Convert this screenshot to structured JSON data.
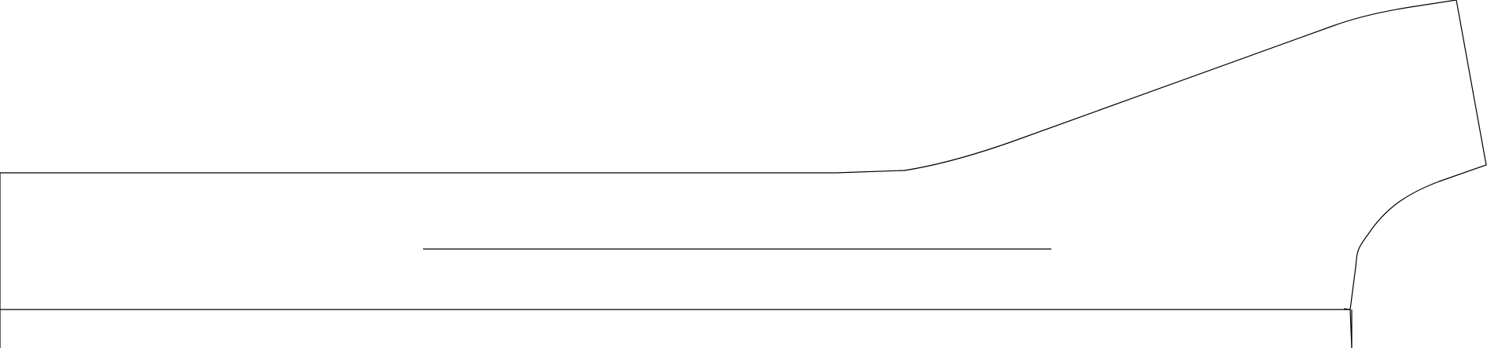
{
  "drawing": {
    "type": "line-drawing",
    "background": "#ffffff",
    "line_color": "#000000",
    "labels": []
  }
}
